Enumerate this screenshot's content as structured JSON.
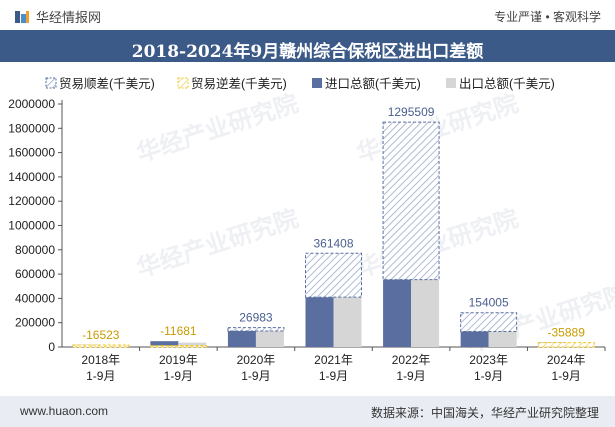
{
  "header": {
    "brand": "华经情报网",
    "tagline": "专业严谨 • 客观科学"
  },
  "title": "2018-2024年9月赣州综合保税区进出口差额",
  "footer": {
    "website": "www.huaon.com",
    "source": "数据来源：中国海关，华经产业研究院整理"
  },
  "watermark": "华经产业研究院",
  "colors": {
    "surplus": "#5a6fa0",
    "deficit": "#f0c419",
    "import": "#5a6fa0",
    "export": "#d6d6d6",
    "title_bg": "#3c5a87"
  },
  "chart_data": {
    "type": "bar",
    "title": "2018-2024年9月赣州综合保税区进出口差额",
    "categories": [
      [
        "2018年",
        "1-9月"
      ],
      [
        "2019年",
        "1-9月"
      ],
      [
        "2020年",
        "1-9月"
      ],
      [
        "2021年",
        "1-9月"
      ],
      [
        "2022年",
        "1-9月"
      ],
      [
        "2023年",
        "1-9月"
      ],
      [
        "2024年",
        "1-9月"
      ]
    ],
    "series": [
      {
        "name": "贸易顺差(千美元)",
        "values": [
          null,
          null,
          26983,
          361408,
          1295509,
          154005,
          null
        ]
      },
      {
        "name": "贸易逆差(千美元)",
        "values": [
          -16523,
          -11681,
          null,
          null,
          null,
          null,
          -35889
        ]
      },
      {
        "name": "进口总额(千美元)",
        "values": [
          18000,
          48000,
          132000,
          410000,
          555000,
          128000,
          38000
        ]
      },
      {
        "name": "出口总额(千美元)",
        "values": [
          1477,
          36319,
          158983,
          771408,
          1850509,
          282005,
          2111
        ]
      }
    ],
    "data_labels": [
      "-16523",
      "-11681",
      "26983",
      "361408",
      "1295509",
      "154005",
      "-35889"
    ],
    "ylim": [
      0,
      2000000
    ],
    "yticks": [
      0,
      200000,
      400000,
      600000,
      800000,
      1000000,
      1200000,
      1400000,
      1600000,
      1800000,
      2000000
    ],
    "legend_position": "top"
  }
}
